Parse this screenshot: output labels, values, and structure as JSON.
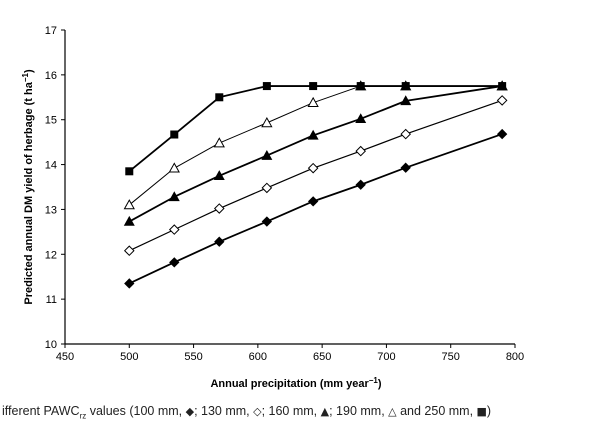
{
  "chart_data": {
    "type": "line",
    "xlabel": "Annual precipitation (mm year",
    "xlabel_sup": "−1",
    "xlabel_end": ")",
    "ylabel": "Predicted annual DM yield of herbage (t ha",
    "ylabel_sup": "−1",
    "ylabel_end": ")",
    "xlim": [
      450,
      800
    ],
    "ylim": [
      10,
      17
    ],
    "xticks": [
      450,
      500,
      550,
      600,
      650,
      700,
      750,
      800
    ],
    "yticks": [
      10,
      11,
      12,
      13,
      14,
      15,
      16,
      17
    ],
    "x": [
      500,
      535,
      570,
      607,
      643,
      680,
      715,
      790
    ],
    "series": [
      {
        "name": "100 mm",
        "marker": "filled-diamond",
        "values": [
          11.35,
          11.82,
          12.28,
          12.73,
          13.18,
          13.55,
          13.93,
          14.68
        ]
      },
      {
        "name": "130 mm",
        "marker": "open-diamond",
        "values": [
          12.08,
          12.55,
          13.02,
          13.48,
          13.92,
          14.3,
          14.68,
          15.43
        ]
      },
      {
        "name": "160 mm",
        "marker": "filled-triangle",
        "values": [
          12.73,
          13.28,
          13.75,
          14.2,
          14.65,
          15.02,
          15.42,
          15.75
        ]
      },
      {
        "name": "190 mm",
        "marker": "open-triangle",
        "values": [
          13.1,
          13.92,
          14.48,
          14.93,
          15.38,
          15.75,
          15.75,
          15.75
        ]
      },
      {
        "name": "250 mm",
        "marker": "filled-square",
        "values": [
          13.85,
          14.67,
          15.5,
          15.75,
          15.75,
          15.75,
          15.75,
          15.75
        ]
      }
    ]
  },
  "caption": {
    "prefix": "ifferent PAWC",
    "sub": "rz",
    "t1": " values (100 mm, ",
    "s1": "◆",
    "t2": "; 130 mm, ",
    "s2": "◇",
    "t3": "; 160 mm, ",
    "s3": "▲",
    "t4": "; 190 mm, ",
    "s4": "△",
    "t5": " and 250 mm, ",
    "s5": "■",
    "t6": ")"
  }
}
